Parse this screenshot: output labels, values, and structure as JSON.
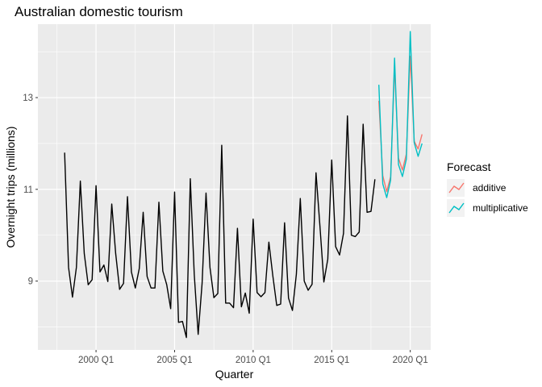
{
  "chart_data": {
    "type": "line",
    "title": "Australian domestic tourism",
    "xlabel": "Quarter",
    "ylabel": "Overnight trips (millions)",
    "xlim": [
      1996.3,
      2021.3
    ],
    "ylim": [
      7.5,
      14.6
    ],
    "x_ticks": [
      {
        "value": 2000,
        "label": "2000 Q1"
      },
      {
        "value": 2005,
        "label": "2005 Q1"
      },
      {
        "value": 2010,
        "label": "2010 Q1"
      },
      {
        "value": 2015,
        "label": "2015 Q1"
      },
      {
        "value": 2020,
        "label": "2020 Q1"
      }
    ],
    "y_ticks": [
      {
        "value": 9,
        "label": "9"
      },
      {
        "value": 11,
        "label": "11"
      },
      {
        "value": 13,
        "label": "13"
      }
    ],
    "grid": true,
    "legend": {
      "title": "Forecast",
      "position": "right"
    },
    "observed": {
      "color": "#000000",
      "start": 1998.0,
      "step": 0.25,
      "values": [
        11.8,
        9.3,
        8.65,
        9.3,
        11.18,
        9.6,
        8.92,
        9.03,
        11.08,
        9.2,
        9.35,
        8.99,
        10.68,
        9.6,
        8.82,
        8.95,
        10.84,
        9.2,
        8.85,
        9.27,
        10.5,
        9.1,
        8.85,
        8.85,
        10.72,
        9.22,
        8.92,
        8.4,
        10.94,
        8.1,
        8.12,
        7.77,
        11.23,
        9.15,
        7.84,
        8.95,
        10.92,
        9.3,
        8.64,
        8.73,
        11.96,
        8.52,
        8.52,
        8.42,
        10.15,
        8.44,
        8.74,
        8.3,
        10.35,
        8.75,
        8.66,
        8.75,
        9.85,
        9.12,
        8.47,
        8.5,
        10.27,
        8.63,
        8.36,
        9.15,
        10.8,
        9.0,
        8.8,
        8.93,
        11.36,
        10.2,
        8.98,
        9.48,
        11.64,
        9.75,
        9.57,
        10.04,
        12.6,
        10.0,
        9.97,
        10.07,
        12.42,
        10.5,
        10.52,
        11.22
      ]
    },
    "series": [
      {
        "name": "additive",
        "color": "#F8766D",
        "start": 2018.0,
        "step": 0.25,
        "values": [
          12.93,
          11.3,
          10.95,
          11.28,
          13.68,
          11.68,
          11.42,
          11.77,
          13.9,
          12.05,
          11.88,
          12.2
        ]
      },
      {
        "name": "multiplicative",
        "color": "#00BFC4",
        "start": 2018.0,
        "step": 0.25,
        "values": [
          13.28,
          11.12,
          10.82,
          11.2,
          13.86,
          11.54,
          11.28,
          11.66,
          14.44,
          12.02,
          11.72,
          12.0
        ]
      }
    ]
  }
}
